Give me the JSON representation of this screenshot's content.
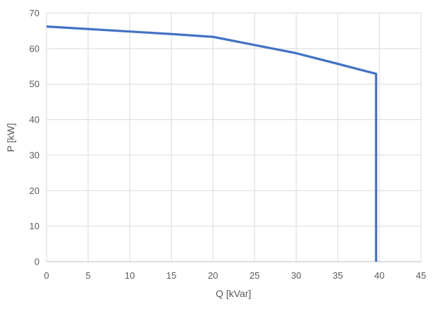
{
  "chart_data": {
    "type": "line",
    "title": "",
    "xlabel": "Q [kVar]",
    "ylabel": "P [kW]",
    "xlim": [
      0,
      45
    ],
    "ylim": [
      0,
      70
    ],
    "x_ticks": [
      0,
      5,
      10,
      15,
      20,
      25,
      30,
      35,
      40,
      45
    ],
    "y_ticks": [
      0,
      10,
      20,
      30,
      40,
      50,
      60,
      70
    ],
    "grid": true,
    "legend": "none",
    "series": [
      {
        "color": "#4472C4",
        "points": [
          [
            0,
            66.2
          ],
          [
            5,
            65.5
          ],
          [
            10,
            64.8
          ],
          [
            15,
            64.1
          ],
          [
            20,
            63.3
          ],
          [
            25,
            61.0
          ],
          [
            30,
            58.7
          ],
          [
            35,
            55.7
          ],
          [
            39.6,
            52.9
          ],
          [
            39.6,
            0
          ]
        ]
      }
    ]
  },
  "styles": {
    "background": "#FFFFFF",
    "grid_color": "#D9D9D9",
    "axis_line_color": "#BFBFBF",
    "text_color": "#595959",
    "series_color": "#4472C4"
  }
}
